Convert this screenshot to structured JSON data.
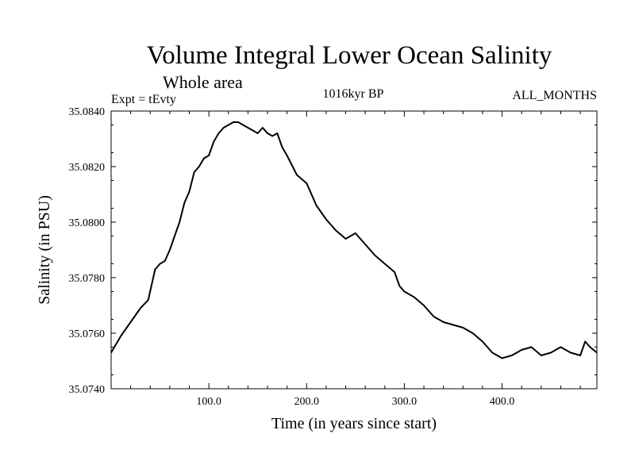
{
  "chart_data": {
    "type": "line",
    "title": "Volume Integral Lower Ocean Salinity",
    "subtitle": "Whole area",
    "annotations": {
      "experiment": "Expt = tEvty",
      "period": "1016kyr BP",
      "months": "ALL_MONTHS"
    },
    "xlabel": "Time (in years since start)",
    "ylabel": "Salinity (in PSU)",
    "xlim": [
      0,
      497
    ],
    "ylim": [
      35.074,
      35.084
    ],
    "x_ticks": [
      {
        "value": 100,
        "label": "100.0"
      },
      {
        "value": 200,
        "label": "200.0"
      },
      {
        "value": 300,
        "label": "300.0"
      },
      {
        "value": 400,
        "label": "400.0"
      }
    ],
    "y_ticks": [
      {
        "value": 35.074,
        "label": "35.0740"
      },
      {
        "value": 35.076,
        "label": "35.0760"
      },
      {
        "value": 35.078,
        "label": "35.0780"
      },
      {
        "value": 35.08,
        "label": "35.0800"
      },
      {
        "value": 35.082,
        "label": "35.0820"
      },
      {
        "value": 35.084,
        "label": "35.0840"
      }
    ],
    "grid": false,
    "series": [
      {
        "name": "Salinity",
        "x": [
          0,
          10,
          20,
          30,
          38,
          45,
          50,
          55,
          60,
          65,
          70,
          75,
          80,
          85,
          90,
          95,
          100,
          105,
          110,
          115,
          120,
          125,
          130,
          135,
          140,
          145,
          150,
          155,
          160,
          165,
          170,
          175,
          180,
          190,
          200,
          210,
          220,
          230,
          240,
          250,
          260,
          270,
          280,
          290,
          295,
          300,
          310,
          320,
          330,
          340,
          350,
          360,
          370,
          380,
          390,
          400,
          410,
          420,
          430,
          440,
          450,
          460,
          470,
          480,
          485,
          490,
          497
        ],
        "values": [
          35.0753,
          35.0759,
          35.0764,
          35.0769,
          35.0772,
          35.0783,
          35.0785,
          35.0786,
          35.079,
          35.0795,
          35.08,
          35.0807,
          35.0811,
          35.0818,
          35.082,
          35.0823,
          35.0824,
          35.0829,
          35.0832,
          35.0834,
          35.0835,
          35.0836,
          35.0836,
          35.0835,
          35.0834,
          35.0833,
          35.0832,
          35.0834,
          35.0832,
          35.0831,
          35.0832,
          35.0827,
          35.0824,
          35.0817,
          35.0814,
          35.0806,
          35.0801,
          35.0797,
          35.0794,
          35.0796,
          35.0792,
          35.0788,
          35.0785,
          35.0782,
          35.0777,
          35.0775,
          35.0773,
          35.077,
          35.0766,
          35.0764,
          35.0763,
          35.0762,
          35.076,
          35.0757,
          35.0753,
          35.0751,
          35.0752,
          35.0754,
          35.0755,
          35.0752,
          35.0753,
          35.0755,
          35.0753,
          35.0752,
          35.0757,
          35.0755,
          35.0753
        ]
      }
    ]
  }
}
